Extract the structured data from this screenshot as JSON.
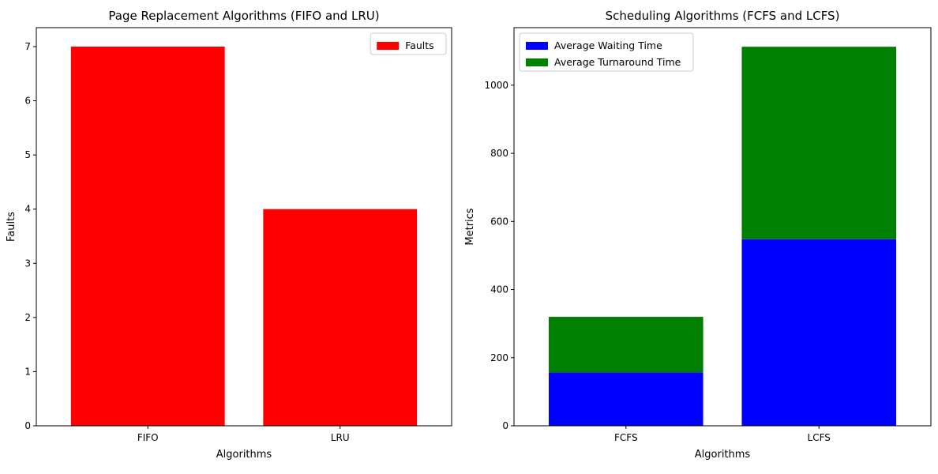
{
  "chart_data": [
    {
      "type": "bar",
      "title": "Page Replacement Algorithms (FIFO and LRU)",
      "xlabel": "Algorithms",
      "ylabel": "Faults",
      "categories": [
        "FIFO",
        "LRU"
      ],
      "series": [
        {
          "name": "Faults",
          "values": [
            7,
            4
          ],
          "color": "#ff0000"
        }
      ],
      "ylim": [
        0,
        7.35
      ],
      "yticks": [
        0,
        1,
        2,
        3,
        4,
        5,
        6,
        7
      ],
      "grid": false,
      "legend": "upper-right"
    },
    {
      "type": "bar",
      "stacked": true,
      "title": "Scheduling Algorithms (FCFS and LCFS)",
      "xlabel": "Algorithms",
      "ylabel": "Metrics",
      "categories": [
        "FCFS",
        "LCFS"
      ],
      "series": [
        {
          "name": "Average Waiting Time",
          "values": [
            157,
            548
          ],
          "color": "#0000ff"
        },
        {
          "name": "Average Turnaround Time",
          "values": [
            163,
            565
          ],
          "color": "#008000"
        }
      ],
      "ylim": [
        0,
        1169
      ],
      "yticks": [
        0,
        200,
        400,
        600,
        800,
        1000
      ],
      "grid": false,
      "legend": "upper-left"
    }
  ]
}
